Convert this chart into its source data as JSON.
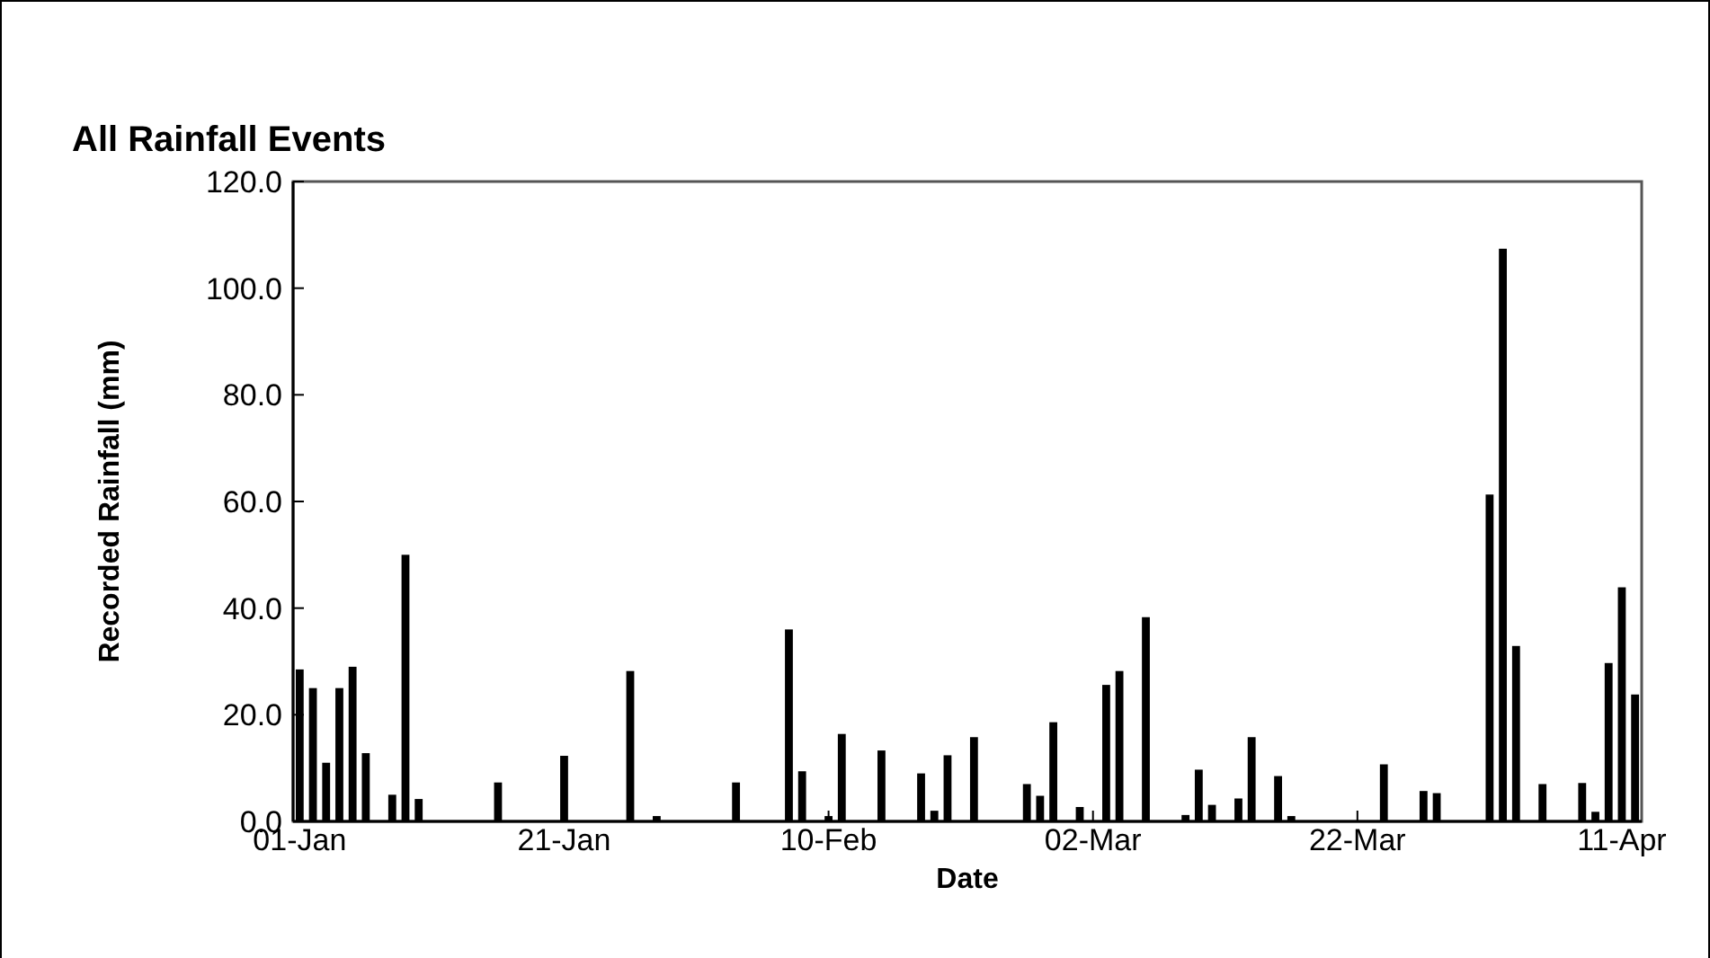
{
  "chart_data": {
    "type": "bar",
    "title": "All Rainfall Events",
    "xlabel": "Date",
    "ylabel": "Recorded Rainfall (mm)",
    "x": [
      "--01-01",
      "--01-02",
      "--01-03",
      "--01-04",
      "--01-05",
      "--01-06",
      "--01-08",
      "--01-09",
      "--01-10",
      "--01-16",
      "--01-21",
      "--01-26",
      "--01-28",
      "--02-03",
      "--02-07",
      "--02-08",
      "--02-10",
      "--02-11",
      "--02-14",
      "--02-17",
      "--02-18",
      "--02-19",
      "--02-21",
      "--02-25",
      "--02-26",
      "--02-27",
      "--03-01",
      "--03-03",
      "--03-04",
      "--03-06",
      "--03-09",
      "--03-10",
      "--03-11",
      "--03-13",
      "--03-14",
      "--03-16",
      "--03-17",
      "--03-24",
      "--03-27",
      "--03-28",
      "--04-01",
      "--04-02",
      "--04-03",
      "--04-05",
      "--04-08",
      "--04-09",
      "--04-10",
      "--04-11",
      "--04-12"
    ],
    "values": [
      28.5,
      25.0,
      11.0,
      25.0,
      29.0,
      12.8,
      5.0,
      50.0,
      4.2,
      7.3,
      12.3,
      28.2,
      1.0,
      7.3,
      36.0,
      9.4,
      1.0,
      16.4,
      13.3,
      9.0,
      2.0,
      12.4,
      15.8,
      7.0,
      4.8,
      18.6,
      2.7,
      25.6,
      28.2,
      38.3,
      1.2,
      9.7,
      3.1,
      4.3,
      15.8,
      8.5,
      1.0,
      10.7,
      5.7,
      5.3,
      61.3,
      107.4,
      32.9,
      7.0,
      7.2,
      1.8,
      29.7,
      43.9,
      23.8
    ],
    "color": "#000000",
    "xlim": [
      "--01-01",
      "--04-13"
    ],
    "xticks": [
      {
        "value": "--01-01",
        "label": "01-Jan"
      },
      {
        "value": "--01-21",
        "label": "21-Jan"
      },
      {
        "value": "--02-10",
        "label": "10-Feb"
      },
      {
        "value": "--03-02",
        "label": "02-Mar"
      },
      {
        "value": "--03-22",
        "label": "22-Mar"
      },
      {
        "value": "--04-11",
        "label": "11-Apr"
      }
    ],
    "ylim": [
      0,
      120
    ],
    "yticks": [
      {
        "value": 0,
        "label": "0.0"
      },
      {
        "value": 20,
        "label": "20.0"
      },
      {
        "value": 40,
        "label": "40.0"
      },
      {
        "value": 60,
        "label": "60.0"
      },
      {
        "value": 80,
        "label": "80.0"
      },
      {
        "value": 100,
        "label": "100.0"
      },
      {
        "value": 120,
        "label": "120.0"
      }
    ]
  }
}
